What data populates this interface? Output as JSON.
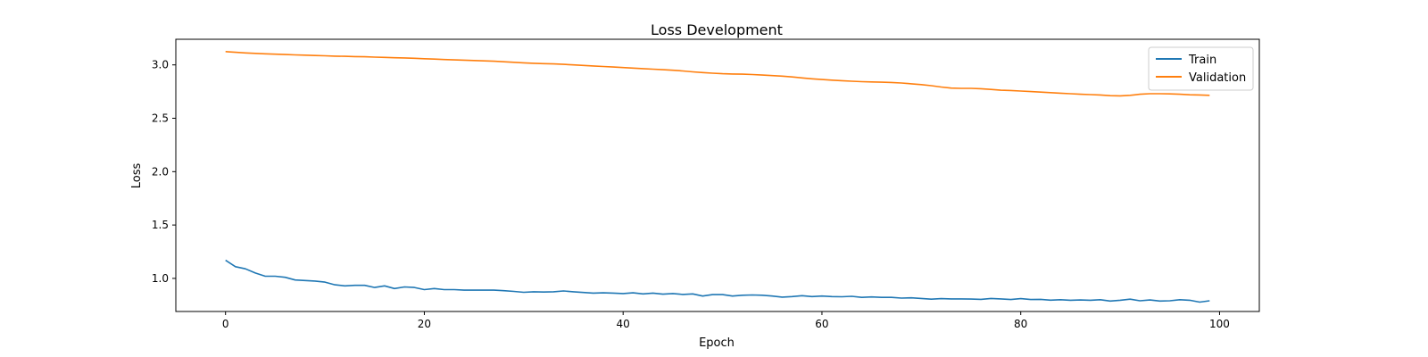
{
  "chart_data": {
    "type": "line",
    "title": "Loss Development",
    "xlabel": "Epoch",
    "ylabel": "Loss",
    "xlim": [
      -5,
      104
    ],
    "ylim": [
      0.69,
      3.24
    ],
    "xticks": [
      0,
      20,
      40,
      60,
      80,
      100
    ],
    "yticks": [
      1.0,
      1.5,
      2.0,
      2.5,
      3.0
    ],
    "ytick_labels": [
      "1.0",
      "1.5",
      "2.0",
      "2.5",
      "3.0"
    ],
    "grid": false,
    "legend_position": "top-right",
    "series": [
      {
        "name": "Train",
        "color": "#1f77b4",
        "x": [
          0,
          1,
          2,
          3,
          4,
          5,
          6,
          7,
          8,
          9,
          10,
          11,
          12,
          13,
          14,
          15,
          16,
          17,
          18,
          19,
          20,
          21,
          22,
          23,
          24,
          25,
          26,
          27,
          28,
          29,
          30,
          31,
          32,
          33,
          34,
          35,
          36,
          37,
          38,
          39,
          40,
          41,
          42,
          43,
          44,
          45,
          46,
          47,
          48,
          49,
          50,
          51,
          52,
          53,
          54,
          55,
          56,
          57,
          58,
          59,
          60,
          61,
          62,
          63,
          64,
          65,
          66,
          67,
          68,
          69,
          70,
          71,
          72,
          73,
          74,
          75,
          76,
          77,
          78,
          79,
          80,
          81,
          82,
          83,
          84,
          85,
          86,
          87,
          88,
          89,
          90,
          91,
          92,
          93,
          94,
          95,
          96,
          97,
          98,
          99
        ],
        "values": [
          1.17,
          1.11,
          1.09,
          1.05,
          1.02,
          1.02,
          1.01,
          0.985,
          0.98,
          0.975,
          0.965,
          0.94,
          0.93,
          0.935,
          0.935,
          0.915,
          0.93,
          0.905,
          0.92,
          0.915,
          0.895,
          0.905,
          0.895,
          0.895,
          0.89,
          0.89,
          0.89,
          0.89,
          0.885,
          0.878,
          0.87,
          0.875,
          0.872,
          0.875,
          0.882,
          0.875,
          0.868,
          0.862,
          0.865,
          0.862,
          0.858,
          0.865,
          0.855,
          0.862,
          0.852,
          0.858,
          0.85,
          0.855,
          0.835,
          0.848,
          0.848,
          0.835,
          0.842,
          0.845,
          0.842,
          0.835,
          0.825,
          0.83,
          0.838,
          0.83,
          0.835,
          0.83,
          0.828,
          0.832,
          0.822,
          0.826,
          0.822,
          0.822,
          0.815,
          0.818,
          0.812,
          0.805,
          0.81,
          0.808,
          0.808,
          0.806,
          0.804,
          0.812,
          0.808,
          0.802,
          0.81,
          0.802,
          0.804,
          0.796,
          0.8,
          0.795,
          0.798,
          0.795,
          0.8,
          0.788,
          0.795,
          0.805,
          0.79,
          0.798,
          0.788,
          0.79,
          0.8,
          0.795,
          0.778,
          0.79
        ]
      },
      {
        "name": "Validation",
        "color": "#ff7f0e",
        "x": [
          0,
          1,
          2,
          3,
          4,
          5,
          6,
          7,
          8,
          9,
          10,
          11,
          12,
          13,
          14,
          15,
          16,
          17,
          18,
          19,
          20,
          21,
          22,
          23,
          24,
          25,
          26,
          27,
          28,
          29,
          30,
          31,
          32,
          33,
          34,
          35,
          36,
          37,
          38,
          39,
          40,
          41,
          42,
          43,
          44,
          45,
          46,
          47,
          48,
          49,
          50,
          51,
          52,
          53,
          54,
          55,
          56,
          57,
          58,
          59,
          60,
          61,
          62,
          63,
          64,
          65,
          66,
          67,
          68,
          69,
          70,
          71,
          72,
          73,
          74,
          75,
          76,
          77,
          78,
          79,
          80,
          81,
          82,
          83,
          84,
          85,
          86,
          87,
          88,
          89,
          90,
          91,
          92,
          93,
          94,
          95,
          96,
          97,
          98,
          99
        ],
        "values": [
          3.125,
          3.118,
          3.112,
          3.108,
          3.104,
          3.1,
          3.097,
          3.094,
          3.091,
          3.088,
          3.085,
          3.082,
          3.08,
          3.078,
          3.076,
          3.073,
          3.07,
          3.067,
          3.065,
          3.062,
          3.058,
          3.054,
          3.05,
          3.047,
          3.044,
          3.041,
          3.038,
          3.034,
          3.029,
          3.024,
          3.019,
          3.015,
          3.012,
          3.009,
          3.005,
          3.0,
          2.995,
          2.99,
          2.985,
          2.98,
          2.975,
          2.97,
          2.965,
          2.96,
          2.955,
          2.95,
          2.943,
          2.935,
          2.928,
          2.922,
          2.917,
          2.915,
          2.913,
          2.91,
          2.905,
          2.9,
          2.895,
          2.887,
          2.878,
          2.87,
          2.863,
          2.857,
          2.852,
          2.847,
          2.843,
          2.84,
          2.838,
          2.835,
          2.83,
          2.823,
          2.815,
          2.805,
          2.793,
          2.783,
          2.78,
          2.78,
          2.777,
          2.77,
          2.763,
          2.76,
          2.755,
          2.75,
          2.745,
          2.74,
          2.735,
          2.73,
          2.725,
          2.722,
          2.718,
          2.712,
          2.71,
          2.715,
          2.725,
          2.73,
          2.73,
          2.728,
          2.725,
          2.72,
          2.718,
          2.715
        ]
      }
    ]
  }
}
